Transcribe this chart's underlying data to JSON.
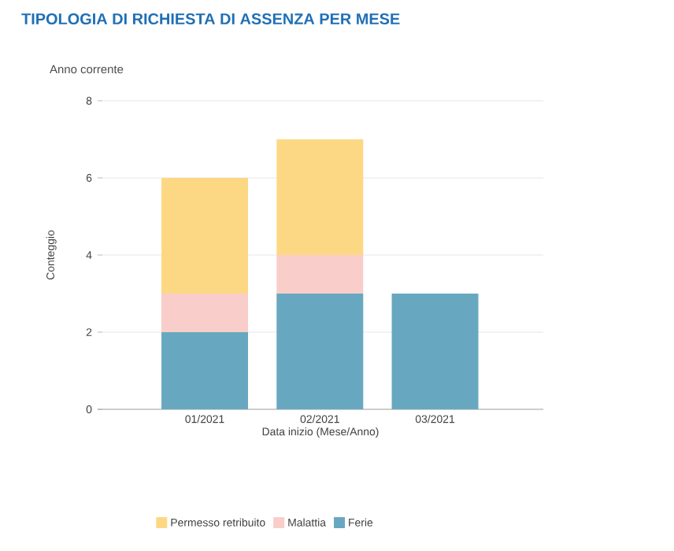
{
  "chart_data": {
    "type": "bar",
    "title": "TIPOLOGIA DI RICHIESTA DI ASSENZA PER MESE",
    "subtitle": "Anno corrente",
    "xlabel": "Data inizio (Mese/Anno)",
    "ylabel": "Conteggio",
    "categories": [
      "01/2021",
      "02/2021",
      "03/2021"
    ],
    "stacked": true,
    "series": [
      {
        "name": "Ferie",
        "color": "#67a8c0",
        "values": [
          2,
          3,
          3
        ]
      },
      {
        "name": "Malattia",
        "color": "#f9cdc9",
        "values": [
          1,
          1,
          0
        ]
      },
      {
        "name": "Permesso retribuito",
        "color": "#fdd884",
        "values": [
          3,
          3,
          0
        ]
      }
    ],
    "ylim": [
      0,
      8
    ],
    "yticks": [
      0,
      2,
      4,
      6,
      8
    ],
    "grid": "y",
    "legend": "bottom"
  }
}
